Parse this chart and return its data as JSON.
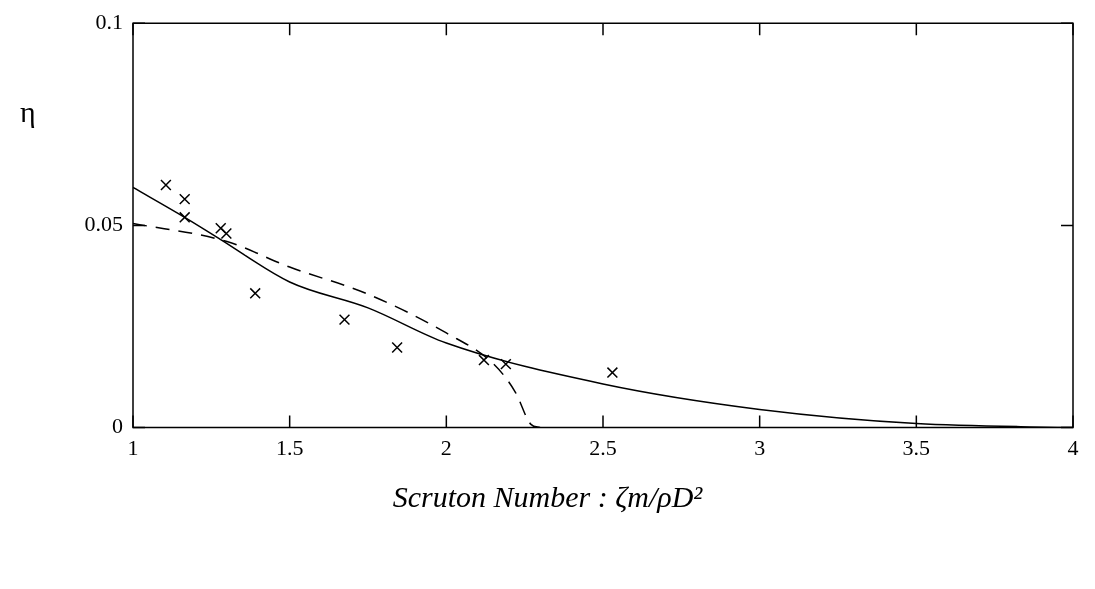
{
  "chart_data": {
    "type": "scatter",
    "xlabel": "Scruton Number :  ζm/ρD²",
    "ylabel": "η",
    "xlim": [
      1,
      4
    ],
    "xticks": [
      1,
      1.5,
      2,
      2.5,
      3,
      3.5,
      4
    ],
    "ylim": [
      0,
      0.1
    ],
    "yticks": [
      0,
      0.05,
      0.1
    ],
    "grid": false,
    "legend": false,
    "series": [
      {
        "type": "scatter",
        "color": "#000000",
        "marker": "cross",
        "x": [
          1.105,
          1.165,
          1.165,
          1.28,
          1.298,
          1.39,
          1.675,
          1.843,
          2.12,
          2.19,
          2.53
        ],
        "values": [
          0.06,
          0.0565,
          0.052,
          0.0493,
          0.048,
          0.0332,
          0.0267,
          0.0198,
          0.0167,
          0.0157,
          0.0136
        ]
      },
      {
        "type": "line",
        "color": "#000000",
        "marker": "none",
        "line_style": "solid",
        "x": [
          1,
          1.165,
          1.28,
          1.5,
          1.75,
          2,
          2.5,
          3,
          3.5,
          4
        ],
        "values": [
          0.0594,
          0.052,
          0.0465,
          0.036,
          0.0296,
          0.0209,
          0.0108,
          0.0045,
          0.001,
          0
        ]
      },
      {
        "type": "line",
        "color": "#000000",
        "marker": "none",
        "line_style": "dashed",
        "x": [
          1,
          1.3,
          1.5,
          1.75,
          2,
          2.15,
          2.22,
          2.27,
          2.3
        ],
        "values": [
          0.0505,
          0.046,
          0.0397,
          0.033,
          0.0234,
          0.0158,
          0.0088,
          0.0008,
          0
        ]
      }
    ]
  }
}
